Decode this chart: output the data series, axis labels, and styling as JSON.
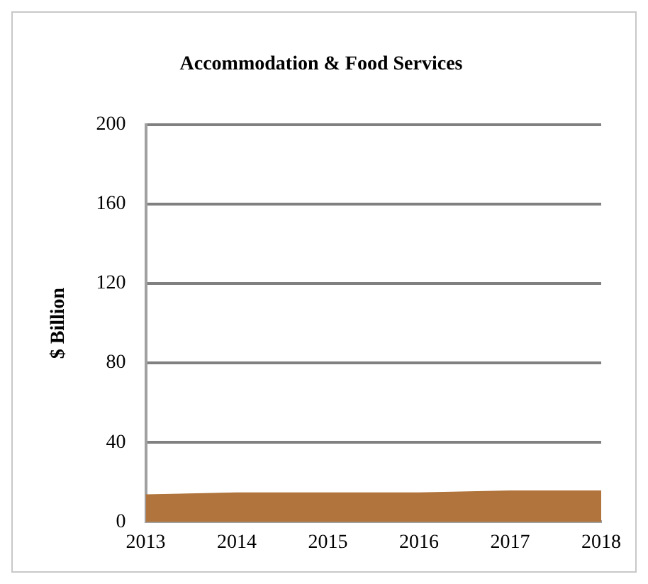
{
  "chart_data": {
    "type": "area",
    "title": "Accommodation & Food Services",
    "ylabel": "$ Billion",
    "categories": [
      "2013",
      "2014",
      "2015",
      "2016",
      "2017",
      "2018"
    ],
    "series": [
      {
        "color": "#b0743c",
        "values": [
          13.5,
          14.5,
          14.5,
          14.5,
          15.5,
          15.5
        ]
      }
    ],
    "ylim": [
      0,
      200
    ],
    "yticks": [
      0,
      40,
      80,
      120,
      160,
      200
    ],
    "grid": "y",
    "legend": false
  }
}
